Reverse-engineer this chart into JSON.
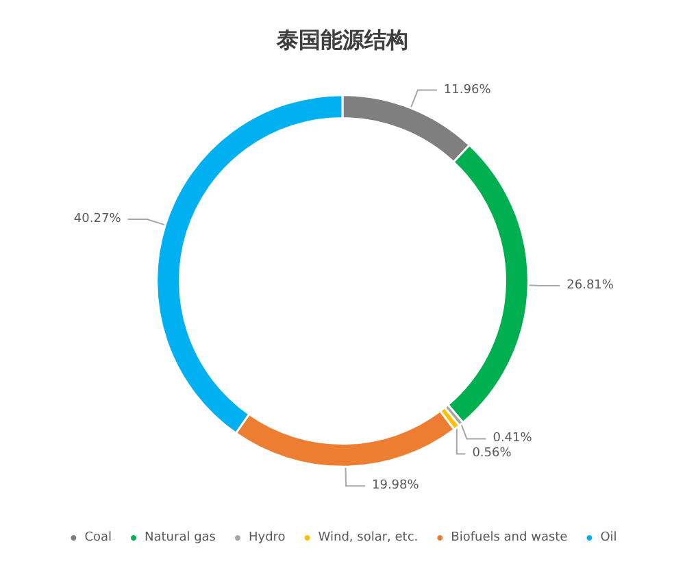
{
  "chart_data": {
    "type": "donut",
    "title": "泰国能源结构",
    "categories": [
      "Coal",
      "Natural gas",
      "Hydro",
      "Wind, solar, etc.",
      "Biofuels and waste",
      "Oil"
    ],
    "values": [
      11.96,
      26.81,
      0.41,
      0.56,
      19.98,
      40.27
    ],
    "value_labels": [
      "11.96%",
      "26.81%",
      "0.41%",
      "0.56%",
      "19.98%",
      "40.27%"
    ],
    "colors": [
      "#7f7f7f",
      "#00b050",
      "#a5a5a5",
      "#ffc000",
      "#ed7d31",
      "#00b0f0"
    ],
    "legend": "bottom"
  }
}
